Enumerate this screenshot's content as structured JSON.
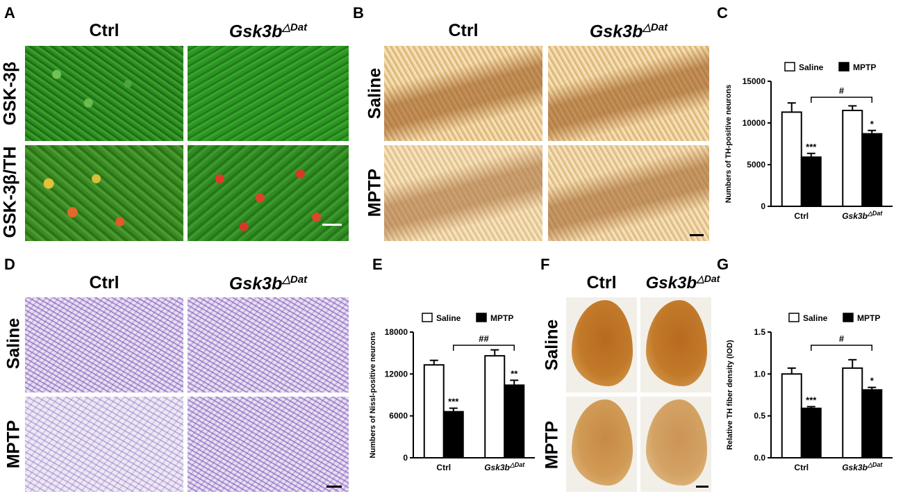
{
  "panel_letters": {
    "a": "A",
    "b": "B",
    "c": "C",
    "d": "D",
    "e": "E",
    "f": "F",
    "g": "G"
  },
  "columns": {
    "ctrl": "Ctrl",
    "gsk_base": "Gsk3b",
    "gsk_sup": "△Dat"
  },
  "rows": {
    "gsk3b": "GSK-3β",
    "gsk3b_th": "GSK-3β/TH",
    "saline": "Saline",
    "mptp": "MPTP"
  },
  "colors": {
    "saline_bar": "#ffffff",
    "mptp_bar": "#000000",
    "scale_green": "#ffffff",
    "scale_dark": "#000000"
  },
  "chart_data": [
    {
      "panel": "C",
      "type": "bar",
      "categories": [
        "Ctrl",
        "Gsk3b△Dat"
      ],
      "series": [
        {
          "name": "Saline",
          "values": [
            11300,
            11500
          ],
          "errors": [
            1100,
            550
          ]
        },
        {
          "name": "MPTP",
          "values": [
            5900,
            8700
          ],
          "errors": [
            450,
            400
          ]
        }
      ],
      "ylabel": "Numbers of TH-positive neurons",
      "ylim": [
        0,
        15000
      ],
      "yticks": [
        0,
        5000,
        10000,
        15000
      ],
      "annotations": {
        "mptp_ctrl": "***",
        "mptp_gsk": "*",
        "between": "#"
      },
      "legend": "top"
    },
    {
      "panel": "E",
      "type": "bar",
      "categories": [
        "Ctrl",
        "Gsk3b△Dat"
      ],
      "series": [
        {
          "name": "Saline",
          "values": [
            13300,
            14600
          ],
          "errors": [
            650,
            850
          ]
        },
        {
          "name": "MPTP",
          "values": [
            6600,
            10400
          ],
          "errors": [
            500,
            700
          ]
        }
      ],
      "ylabel": "Numbers of Nissl-positive neurons",
      "ylim": [
        0,
        18000
      ],
      "yticks": [
        0,
        6000,
        12000,
        18000
      ],
      "annotations": {
        "mptp_ctrl": "***",
        "mptp_gsk": "**",
        "between": "##"
      },
      "legend": "top"
    },
    {
      "panel": "G",
      "type": "bar",
      "categories": [
        "Ctrl",
        "Gsk3b△Dat"
      ],
      "series": [
        {
          "name": "Saline",
          "values": [
            1.0,
            1.07
          ],
          "errors": [
            0.07,
            0.1
          ]
        },
        {
          "name": "MPTP",
          "values": [
            0.59,
            0.81
          ],
          "errors": [
            0.02,
            0.03
          ]
        }
      ],
      "ylabel": "Relative TH fiber density (IOD)",
      "ylim": [
        0,
        1.5
      ],
      "yticks": [
        "0.0",
        "0.5",
        "1.0",
        "1.5"
      ],
      "annotations": {
        "mptp_ctrl": "***",
        "mptp_gsk": "*",
        "between": "#"
      },
      "legend": "top"
    }
  ]
}
